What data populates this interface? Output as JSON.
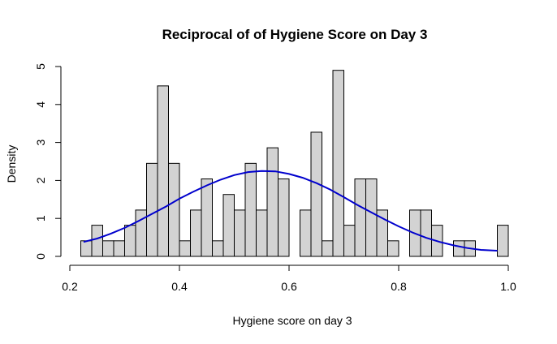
{
  "chart_data": {
    "type": "histogram",
    "title": "Reciprocal of of Hygiene Score on Day 3",
    "xlabel": "Hygiene score on day 3",
    "ylabel": "Density",
    "xlim": [
      0.2,
      1.0
    ],
    "ylim": [
      0,
      5
    ],
    "x_ticks": [
      "0.2",
      "0.4",
      "0.6",
      "0.8",
      "1.0"
    ],
    "y_ticks": [
      "0",
      "1",
      "2",
      "3",
      "4",
      "5"
    ],
    "bar_color": "#d3d3d3",
    "density_color": "#0000cd",
    "bin_width": 0.02,
    "bins": [
      {
        "start": 0.22,
        "density": 0.41
      },
      {
        "start": 0.24,
        "density": 0.82
      },
      {
        "start": 0.26,
        "density": 0.41
      },
      {
        "start": 0.28,
        "density": 0.41
      },
      {
        "start": 0.3,
        "density": 0.82
      },
      {
        "start": 0.32,
        "density": 1.22
      },
      {
        "start": 0.34,
        "density": 2.45
      },
      {
        "start": 0.36,
        "density": 4.49
      },
      {
        "start": 0.38,
        "density": 2.45
      },
      {
        "start": 0.4,
        "density": 0.41
      },
      {
        "start": 0.42,
        "density": 1.22
      },
      {
        "start": 0.44,
        "density": 2.04
      },
      {
        "start": 0.46,
        "density": 0.41
      },
      {
        "start": 0.48,
        "density": 1.63
      },
      {
        "start": 0.5,
        "density": 1.22
      },
      {
        "start": 0.52,
        "density": 2.45
      },
      {
        "start": 0.54,
        "density": 1.22
      },
      {
        "start": 0.56,
        "density": 2.86
      },
      {
        "start": 0.58,
        "density": 2.04
      },
      {
        "start": 0.6,
        "density": 0
      },
      {
        "start": 0.62,
        "density": 1.22
      },
      {
        "start": 0.64,
        "density": 3.27
      },
      {
        "start": 0.66,
        "density": 0.41
      },
      {
        "start": 0.68,
        "density": 4.9
      },
      {
        "start": 0.7,
        "density": 0.82
      },
      {
        "start": 0.72,
        "density": 2.04
      },
      {
        "start": 0.74,
        "density": 2.04
      },
      {
        "start": 0.76,
        "density": 1.22
      },
      {
        "start": 0.78,
        "density": 0.41
      },
      {
        "start": 0.8,
        "density": 0
      },
      {
        "start": 0.82,
        "density": 1.22
      },
      {
        "start": 0.84,
        "density": 1.22
      },
      {
        "start": 0.86,
        "density": 0.82
      },
      {
        "start": 0.88,
        "density": 0
      },
      {
        "start": 0.9,
        "density": 0.41
      },
      {
        "start": 0.92,
        "density": 0.41
      },
      {
        "start": 0.94,
        "density": 0
      },
      {
        "start": 0.96,
        "density": 0
      },
      {
        "start": 0.98,
        "density": 0.82
      }
    ],
    "density_curve": {
      "x": [
        0.225,
        0.25,
        0.275,
        0.3,
        0.325,
        0.35,
        0.375,
        0.4,
        0.425,
        0.45,
        0.475,
        0.5,
        0.525,
        0.55,
        0.575,
        0.6,
        0.625,
        0.65,
        0.675,
        0.7,
        0.725,
        0.75,
        0.775,
        0.8,
        0.825,
        0.85,
        0.875,
        0.9,
        0.925,
        0.95,
        0.98
      ],
      "y": [
        0.38,
        0.47,
        0.6,
        0.75,
        0.93,
        1.12,
        1.31,
        1.52,
        1.7,
        1.87,
        2.02,
        2.14,
        2.22,
        2.25,
        2.24,
        2.17,
        2.07,
        1.93,
        1.76,
        1.56,
        1.35,
        1.16,
        0.97,
        0.79,
        0.63,
        0.49,
        0.38,
        0.29,
        0.22,
        0.17,
        0.15
      ]
    }
  }
}
